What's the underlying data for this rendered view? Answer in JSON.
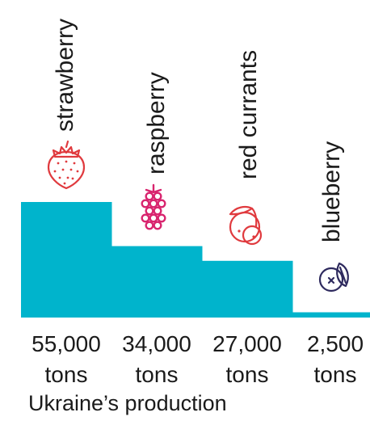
{
  "chart_data": {
    "type": "bar",
    "categories": [
      "strawberry",
      "raspberry",
      "red currants",
      "blueberry"
    ],
    "values": [
      55000,
      34000,
      27000,
      2500
    ],
    "value_labels": [
      "55,000",
      "34,000",
      "27,000",
      "2,500"
    ],
    "unit_label": "tons",
    "icons": [
      "strawberry-icon",
      "raspberry-icon",
      "red-currants-icon",
      "blueberry-icon"
    ],
    "icon_colors": [
      "#e03a3e",
      "#d8246e",
      "#e03a3e",
      "#2e2a5e"
    ],
    "bar_color": "#00b4cc",
    "caption": "Ukraine’s production"
  }
}
